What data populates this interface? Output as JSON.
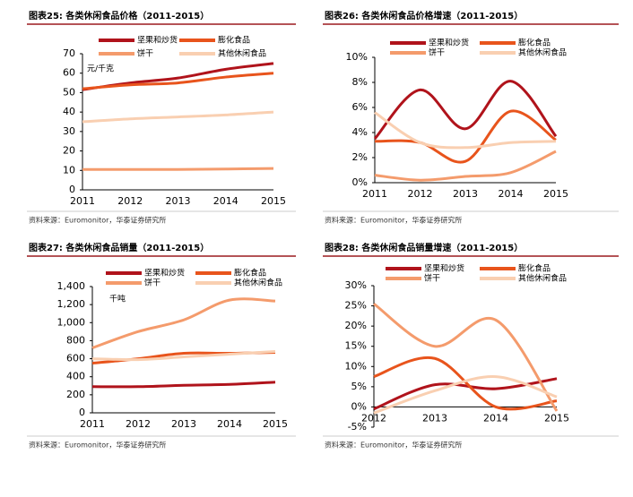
{
  "chart_data": [
    {
      "type": "line",
      "title": "图表25:  各类休闲食品价格（2011-2015）",
      "annotation": "元/千克",
      "source": "资料来源：Euromonitor，华泰证券研究所",
      "categories": [
        "2011",
        "2012",
        "2013",
        "2014",
        "2015"
      ],
      "series": [
        {
          "name": "坚果和炒货",
          "color": "#b0131b",
          "values": [
            51.5,
            55,
            57.5,
            62,
            65
          ]
        },
        {
          "name": "膨化食品",
          "color": "#e8541c",
          "values": [
            52,
            54,
            55,
            58,
            60
          ]
        },
        {
          "name": "饼干",
          "color": "#f49b6c",
          "values": [
            10.5,
            10.5,
            10.5,
            10.7,
            11
          ]
        },
        {
          "name": "其他休闲食品",
          "color": "#f9cfb1",
          "values": [
            35,
            36.5,
            37.5,
            38.5,
            40
          ]
        }
      ],
      "ylim": [
        0,
        70
      ],
      "yticks": [
        0,
        10,
        20,
        30,
        40,
        50,
        60,
        70
      ]
    },
    {
      "type": "line",
      "title": "图表26:  各类休闲食品价格增速（2011-2015）",
      "source": "资料来源：Euromonitor，华泰证券研究所",
      "categories": [
        "2011",
        "2012",
        "2013",
        "2014",
        "2015"
      ],
      "series": [
        {
          "name": "坚果和炒货",
          "color": "#b0131b",
          "values": [
            3.5,
            7.4,
            4.3,
            8.1,
            3.7
          ]
        },
        {
          "name": "膨化食品",
          "color": "#e8541c",
          "values": [
            3.3,
            3.2,
            1.7,
            5.7,
            3.4
          ]
        },
        {
          "name": "饼干",
          "color": "#f49b6c",
          "values": [
            0.6,
            0.2,
            0.5,
            0.8,
            2.5
          ]
        },
        {
          "name": "其他休闲食品",
          "color": "#f9cfb1",
          "values": [
            5.6,
            3.2,
            2.8,
            3.2,
            3.3
          ]
        }
      ],
      "ylim": [
        0,
        10
      ],
      "yticks": [
        {
          "value": 0,
          "label": "0%"
        },
        {
          "value": 2,
          "label": "2%"
        },
        {
          "value": 4,
          "label": "4%"
        },
        {
          "value": 6,
          "label": "6%"
        },
        {
          "value": 8,
          "label": "8%"
        },
        {
          "value": 10,
          "label": "10%"
        }
      ]
    },
    {
      "type": "line",
      "title": "图表27:  各类休闲食品销量（2011-2015）",
      "annotation": "千吨",
      "source": "资料来源：Euromonitor，华泰证券研究所",
      "categories": [
        "2011",
        "2012",
        "2013",
        "2014",
        "2015"
      ],
      "series": [
        {
          "name": "坚果和炒货",
          "color": "#b0131b",
          "values": [
            290,
            290,
            305,
            315,
            340
          ]
        },
        {
          "name": "膨化食品",
          "color": "#e8541c",
          "values": [
            550,
            600,
            660,
            660,
            670
          ]
        },
        {
          "name": "饼干",
          "color": "#f49b6c",
          "values": [
            720,
            900,
            1030,
            1250,
            1240
          ]
        },
        {
          "name": "其他休闲食品",
          "color": "#f9cfb1",
          "values": [
            600,
            590,
            620,
            650,
            680
          ]
        }
      ],
      "ylim": [
        0,
        1400
      ],
      "yticks": [
        0,
        200,
        400,
        600,
        800,
        {
          "value": 1000,
          "label": "1,000"
        },
        {
          "value": 1200,
          "label": "1,200"
        },
        {
          "value": 1400,
          "label": "1,400"
        }
      ]
    },
    {
      "type": "line",
      "title": "图表28:  各类休闲食品销量增速（2011-2015）",
      "source": "资料来源：Euromonitor，华泰证券研究所",
      "categories": [
        "2012",
        "2013",
        "2014",
        "2015"
      ],
      "series": [
        {
          "name": "坚果和炒货",
          "color": "#b0131b",
          "values": [
            -0.5,
            5.5,
            4.5,
            7
          ]
        },
        {
          "name": "膨化食品",
          "color": "#e8541c",
          "values": [
            7.5,
            12,
            0,
            1.5
          ]
        },
        {
          "name": "饼干",
          "color": "#f49b6c",
          "values": [
            25.5,
            15,
            21.5,
            -1
          ]
        },
        {
          "name": "其他休闲食品",
          "color": "#f9cfb1",
          "values": [
            -1.5,
            4,
            7.5,
            2.5
          ]
        }
      ],
      "ylim": [
        -5,
        30
      ],
      "yticks": [
        {
          "value": -5,
          "label": "-5%"
        },
        {
          "value": 0,
          "label": "0%"
        },
        {
          "value": 5,
          "label": "5%"
        },
        {
          "value": 10,
          "label": "10%"
        },
        {
          "value": 15,
          "label": "15%"
        },
        {
          "value": 20,
          "label": "20%"
        },
        {
          "value": 25,
          "label": "25%"
        },
        {
          "value": 30,
          "label": "30%"
        }
      ]
    }
  ]
}
